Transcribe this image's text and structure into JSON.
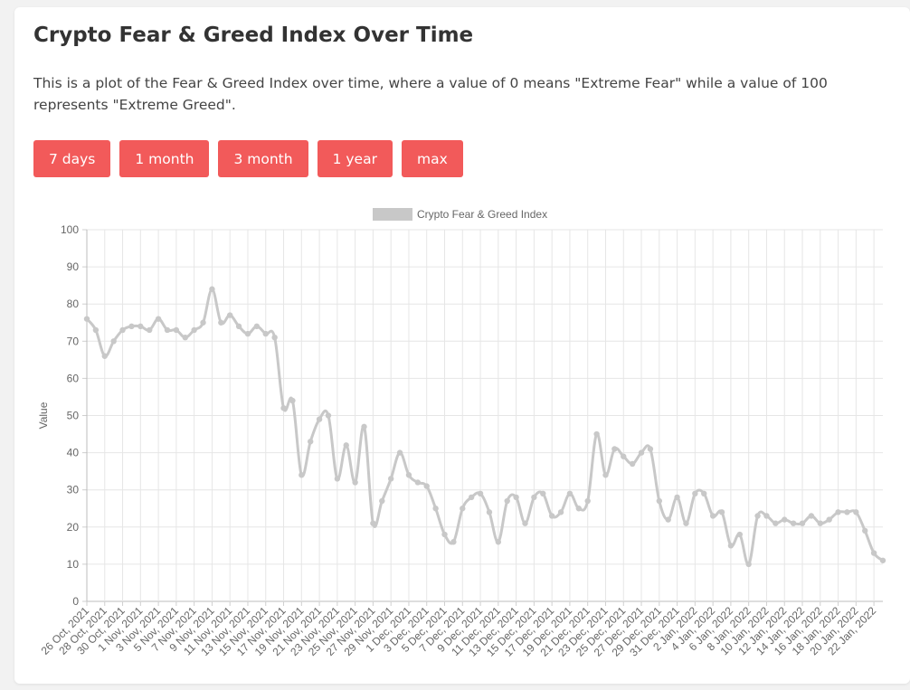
{
  "card": {
    "title": "Crypto Fear & Greed Index Over Time",
    "description": "This is a plot of the Fear & Greed Index over time, where a value of 0 means \"Extreme Fear\" while a value of 100 represents \"Extreme Greed\"."
  },
  "buttons": {
    "days7": "7 days",
    "month1": "1 month",
    "month3": "3 month",
    "year1": "1 year",
    "max": "max"
  },
  "colors": {
    "button": "#f25a5a",
    "series": "#c8c8c8",
    "grid": "#e6e6e6"
  },
  "chart_data": {
    "type": "line",
    "ylabel": "Value",
    "ylim": [
      0,
      100
    ],
    "y_ticks": [
      0,
      10,
      20,
      30,
      40,
      50,
      60,
      70,
      80,
      90,
      100
    ],
    "legend_position": "top-center",
    "grid": true,
    "x": [
      "26 Oct, 2021",
      "27 Oct, 2021",
      "28 Oct, 2021",
      "29 Oct, 2021",
      "30 Oct, 2021",
      "31 Oct, 2021",
      "1 Nov, 2021",
      "2 Nov, 2021",
      "3 Nov, 2021",
      "4 Nov, 2021",
      "5 Nov, 2021",
      "6 Nov, 2021",
      "7 Nov, 2021",
      "8 Nov, 2021",
      "9 Nov, 2021",
      "10 Nov, 2021",
      "11 Nov, 2021",
      "12 Nov, 2021",
      "13 Nov, 2021",
      "14 Nov, 2021",
      "15 Nov, 2021",
      "16 Nov, 2021",
      "17 Nov, 2021",
      "18 Nov, 2021",
      "19 Nov, 2021",
      "20 Nov, 2021",
      "21 Nov, 2021",
      "22 Nov, 2021",
      "23 Nov, 2021",
      "24 Nov, 2021",
      "25 Nov, 2021",
      "26 Nov, 2021",
      "27 Nov, 2021",
      "28 Nov, 2021",
      "29 Nov, 2021",
      "30 Nov, 2021",
      "1 Dec, 2021",
      "2 Dec, 2021",
      "3 Dec, 2021",
      "4 Dec, 2021",
      "5 Dec, 2021",
      "6 Dec, 2021",
      "7 Dec, 2021",
      "8 Dec, 2021",
      "9 Dec, 2021",
      "10 Dec, 2021",
      "11 Dec, 2021",
      "12 Dec, 2021",
      "13 Dec, 2021",
      "14 Dec, 2021",
      "15 Dec, 2021",
      "16 Dec, 2021",
      "17 Dec, 2021",
      "18 Dec, 2021",
      "19 Dec, 2021",
      "20 Dec, 2021",
      "21 Dec, 2021",
      "22 Dec, 2021",
      "23 Dec, 2021",
      "24 Dec, 2021",
      "25 Dec, 2021",
      "26 Dec, 2021",
      "27 Dec, 2021",
      "28 Dec, 2021",
      "29 Dec, 2021",
      "30 Dec, 2021",
      "31 Dec, 2021",
      "1 Jan, 2022",
      "2 Jan, 2022",
      "3 Jan, 2022",
      "4 Jan, 2022",
      "5 Jan, 2022",
      "6 Jan, 2022",
      "7 Jan, 2022",
      "8 Jan, 2022",
      "9 Jan, 2022",
      "10 Jan, 2022",
      "11 Jan, 2022",
      "12 Jan, 2022",
      "13 Jan, 2022",
      "14 Jan, 2022",
      "15 Jan, 2022",
      "16 Jan, 2022",
      "17 Jan, 2022",
      "18 Jan, 2022",
      "19 Jan, 2022",
      "20 Jan, 2022",
      "21 Jan, 2022",
      "22 Jan, 2022",
      "23 Jan, 2022"
    ],
    "tick_labels": [
      "26 Oct, 2021",
      "28 Oct, 2021",
      "30 Oct, 2021",
      "1 Nov, 2021",
      "3 Nov, 2021",
      "5 Nov, 2021",
      "7 Nov, 2021",
      "9 Nov, 2021",
      "11 Nov, 2021",
      "13 Nov, 2021",
      "15 Nov, 2021",
      "17 Nov, 2021",
      "19 Nov, 2021",
      "21 Nov, 2021",
      "23 Nov, 2021",
      "25 Nov, 2021",
      "27 Nov, 2021",
      "29 Nov, 2021",
      "1 Dec, 2021",
      "3 Dec, 2021",
      "5 Dec, 2021",
      "7 Dec, 2021",
      "9 Dec, 2021",
      "11 Dec, 2021",
      "13 Dec, 2021",
      "15 Dec, 2021",
      "17 Dec, 2021",
      "19 Dec, 2021",
      "21 Dec, 2021",
      "23 Dec, 2021",
      "25 Dec, 2021",
      "27 Dec, 2021",
      "29 Dec, 2021",
      "31 Dec, 2021",
      "2 Jan, 2022",
      "4 Jan, 2022",
      "6 Jan, 2022",
      "8 Jan, 2022",
      "10 Jan, 2022",
      "12 Jan, 2022",
      "14 Jan, 2022",
      "16 Jan, 2022",
      "18 Jan, 2022",
      "20 Jan, 2022",
      "22 Jan, 2022"
    ],
    "series": [
      {
        "name": "Crypto Fear & Greed Index",
        "values": [
          76,
          73,
          66,
          70,
          73,
          74,
          74,
          73,
          76,
          73,
          73,
          71,
          73,
          75,
          84,
          75,
          77,
          74,
          72,
          74,
          72,
          71,
          52,
          54,
          34,
          43,
          49,
          50,
          33,
          42,
          32,
          47,
          21,
          27,
          33,
          40,
          34,
          32,
          31,
          25,
          18,
          16,
          25,
          28,
          29,
          24,
          16,
          27,
          28,
          21,
          28,
          29,
          23,
          24,
          29,
          25,
          27,
          45,
          34,
          41,
          39,
          37,
          40,
          41,
          27,
          22,
          28,
          21,
          29,
          29,
          23,
          24,
          15,
          18,
          10,
          23,
          23,
          21,
          22,
          21,
          21,
          23,
          21,
          22,
          24,
          24,
          24,
          19,
          13,
          11
        ]
      }
    ]
  }
}
